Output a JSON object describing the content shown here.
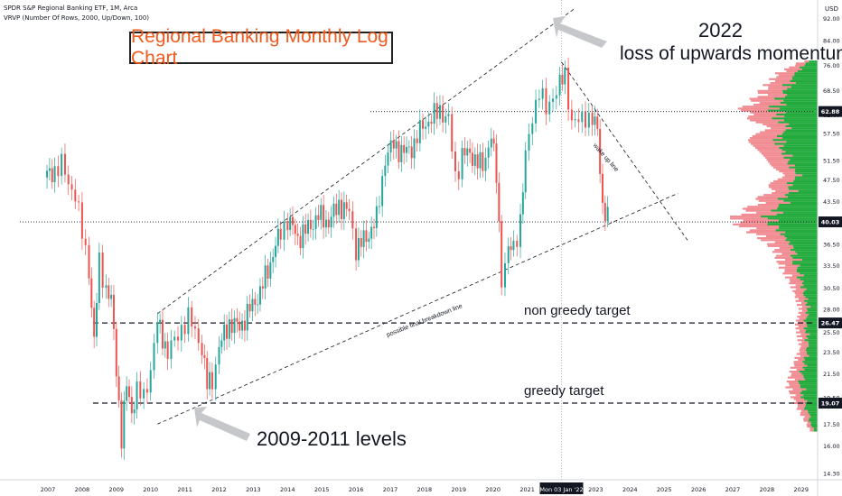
{
  "header": {
    "symbol_line": "SPDR S&P Regional Banking ETF, 1M, Arca",
    "indicator_line": "VRVP (Number Of Rows, 2000, Up/Down, 100)"
  },
  "chart_title": "Regional Banking Monthly Log Chart",
  "annotations": {
    "year_2022": "2022",
    "momentum": "loss of upwards momentum",
    "non_greedy": "non greedy target",
    "greedy": "greedy target",
    "levels_2009": "2009-2011 levels",
    "wake_up": "wake up line",
    "breakdown": "possible final breakdown line"
  },
  "colors": {
    "up": "#26a69a",
    "down": "#ef5350",
    "vol_up": "#22ab3c",
    "vol_down": "#f08c92",
    "accent": "#f05a1e",
    "price_label_bg": "#131722"
  },
  "chart_data": {
    "type": "candlestick",
    "scale": "log",
    "y_unit": "USD",
    "ylim": [
      14.3,
      96.0
    ],
    "x_labels": [
      "2007",
      "2008",
      "2009",
      "2010",
      "2011",
      "2012",
      "2013",
      "2014",
      "2015",
      "2016",
      "2017",
      "2018",
      "2019",
      "2020",
      "2021",
      "Mon 03 Jan '22",
      "2023",
      "2024",
      "2025",
      "2026",
      "2027",
      "2028",
      "2029"
    ],
    "x_label_years": [
      2007,
      2008,
      2009,
      2010,
      2011,
      2012,
      2013,
      2014,
      2015,
      2016,
      2017,
      2018,
      2019,
      2020,
      2021,
      2022,
      2023,
      2024,
      2025,
      2026,
      2027,
      2028,
      2029
    ],
    "y_ticks": [
      92.0,
      84.0,
      76.0,
      68.5,
      62.0,
      57.5,
      51.5,
      47.5,
      43.5,
      40.0,
      36.5,
      33.5,
      30.5,
      28.0,
      25.5,
      23.5,
      21.5,
      19.5,
      17.5,
      16.0,
      14.3
    ],
    "price_labels": [
      {
        "value": 62.88,
        "label": "62.88"
      },
      {
        "value": 40.03,
        "label": "40.03"
      },
      {
        "value": 26.47,
        "label": "26.47"
      },
      {
        "value": 19.07,
        "label": "19.07"
      }
    ],
    "horizontal_lines": [
      {
        "value": 62.88,
        "style": "dotted"
      },
      {
        "value": 40.03,
        "style": "dotted"
      },
      {
        "value": 26.47,
        "style": "dashed"
      },
      {
        "value": 19.07,
        "style": "dashed"
      }
    ],
    "crosshair_x": "Mon 03 Jan '22",
    "trend_lines": [
      {
        "name": "upper channel",
        "from": [
          2010.2,
          27.5
        ],
        "to": [
          2022.4,
          96.0
        ]
      },
      {
        "name": "possible final breakdown line",
        "from": [
          2010.2,
          17.5
        ],
        "to": [
          2025.4,
          45.0
        ]
      },
      {
        "name": "wake up line",
        "from": [
          2022.0,
          77.0
        ],
        "to": [
          2025.7,
          37.0
        ]
      }
    ],
    "monthly_closes": [
      {
        "t": 2006.9,
        "c": 48.0
      },
      {
        "t": 2007.2,
        "c": 49.5
      },
      {
        "t": 2007.4,
        "c": 50.5
      },
      {
        "t": 2007.6,
        "c": 47.0
      },
      {
        "t": 2007.8,
        "c": 45.0
      },
      {
        "t": 2008.0,
        "c": 38.0
      },
      {
        "t": 2008.2,
        "c": 33.0
      },
      {
        "t": 2008.35,
        "c": 24.5
      },
      {
        "t": 2008.5,
        "c": 34.0
      },
      {
        "t": 2008.7,
        "c": 30.5
      },
      {
        "t": 2008.85,
        "c": 29.0
      },
      {
        "t": 2009.0,
        "c": 22.0
      },
      {
        "t": 2009.15,
        "c": 16.5
      },
      {
        "t": 2009.3,
        "c": 20.5
      },
      {
        "t": 2009.45,
        "c": 18.5
      },
      {
        "t": 2009.6,
        "c": 20.0
      },
      {
        "t": 2009.8,
        "c": 19.5
      },
      {
        "t": 2010.0,
        "c": 22.0
      },
      {
        "t": 2010.2,
        "c": 26.5
      },
      {
        "t": 2010.35,
        "c": 25.0
      },
      {
        "t": 2010.5,
        "c": 23.5
      },
      {
        "t": 2010.7,
        "c": 24.5
      },
      {
        "t": 2010.9,
        "c": 26.0
      },
      {
        "t": 2011.1,
        "c": 27.0
      },
      {
        "t": 2011.3,
        "c": 25.5
      },
      {
        "t": 2011.5,
        "c": 24.0
      },
      {
        "t": 2011.65,
        "c": 20.5
      },
      {
        "t": 2011.8,
        "c": 21.0
      },
      {
        "t": 2012.0,
        "c": 24.0
      },
      {
        "t": 2012.3,
        "c": 26.5
      },
      {
        "t": 2012.6,
        "c": 26.0
      },
      {
        "t": 2012.9,
        "c": 28.0
      },
      {
        "t": 2013.2,
        "c": 30.0
      },
      {
        "t": 2013.5,
        "c": 34.0
      },
      {
        "t": 2013.8,
        "c": 38.5
      },
      {
        "t": 2014.0,
        "c": 40.5
      },
      {
        "t": 2014.3,
        "c": 37.5
      },
      {
        "t": 2014.6,
        "c": 39.0
      },
      {
        "t": 2014.9,
        "c": 41.0
      },
      {
        "t": 2015.2,
        "c": 40.0
      },
      {
        "t": 2015.5,
        "c": 43.0
      },
      {
        "t": 2015.8,
        "c": 41.5
      },
      {
        "t": 2016.0,
        "c": 36.0
      },
      {
        "t": 2016.3,
        "c": 37.5
      },
      {
        "t": 2016.6,
        "c": 40.5
      },
      {
        "t": 2016.85,
        "c": 52.0
      },
      {
        "t": 2017.1,
        "c": 55.0
      },
      {
        "t": 2017.4,
        "c": 53.0
      },
      {
        "t": 2017.7,
        "c": 55.0
      },
      {
        "t": 2017.95,
        "c": 59.5
      },
      {
        "t": 2018.2,
        "c": 61.0
      },
      {
        "t": 2018.45,
        "c": 63.5
      },
      {
        "t": 2018.7,
        "c": 60.5
      },
      {
        "t": 2018.9,
        "c": 48.0
      },
      {
        "t": 2019.1,
        "c": 53.0
      },
      {
        "t": 2019.4,
        "c": 52.5
      },
      {
        "t": 2019.7,
        "c": 50.0
      },
      {
        "t": 2019.95,
        "c": 57.5
      },
      {
        "t": 2020.1,
        "c": 48.0
      },
      {
        "t": 2020.25,
        "c": 32.0
      },
      {
        "t": 2020.45,
        "c": 35.5
      },
      {
        "t": 2020.6,
        "c": 36.0
      },
      {
        "t": 2020.8,
        "c": 40.5
      },
      {
        "t": 2020.95,
        "c": 52.0
      },
      {
        "t": 2021.15,
        "c": 62.0
      },
      {
        "t": 2021.35,
        "c": 68.5
      },
      {
        "t": 2021.55,
        "c": 63.0
      },
      {
        "t": 2021.75,
        "c": 67.5
      },
      {
        "t": 2021.95,
        "c": 70.0
      },
      {
        "t": 2022.1,
        "c": 73.0
      },
      {
        "t": 2022.3,
        "c": 60.5
      },
      {
        "t": 2022.5,
        "c": 60.0
      },
      {
        "t": 2022.7,
        "c": 62.0
      },
      {
        "t": 2022.9,
        "c": 61.0
      },
      {
        "t": 2023.05,
        "c": 58.0
      },
      {
        "t": 2023.2,
        "c": 43.0
      },
      {
        "t": 2023.35,
        "c": 40.5
      }
    ]
  }
}
